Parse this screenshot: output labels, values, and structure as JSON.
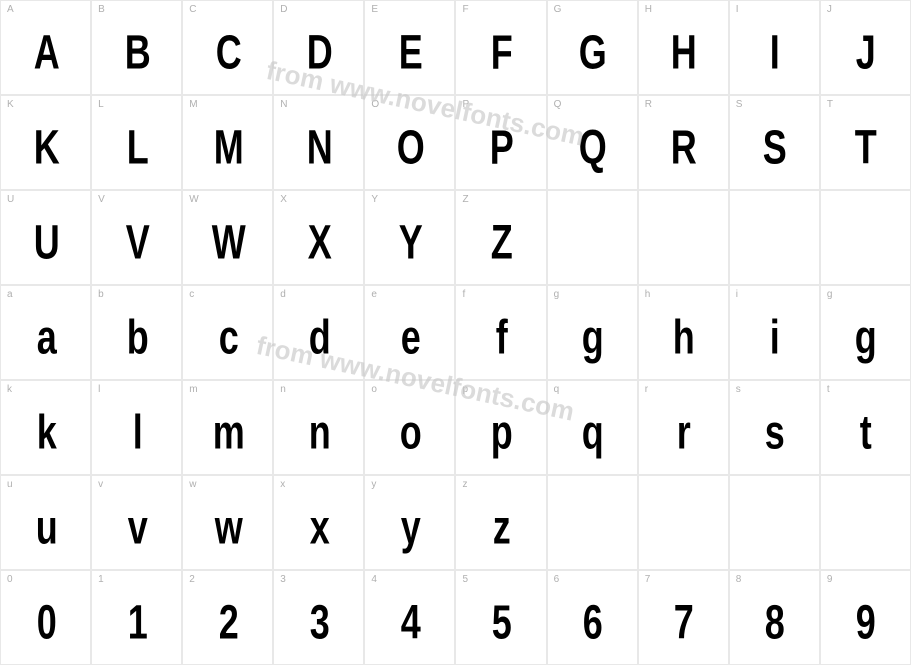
{
  "watermark": "from www.novelfonts.com",
  "grid": {
    "border_color": "#e8e8e8",
    "label_color": "#b0b0b0",
    "glyph_color": "#000000",
    "bg_color": "#ffffff",
    "label_fontsize": 10,
    "glyph_fontsize": 48
  },
  "rows": [
    [
      {
        "label": "A",
        "glyph": "A",
        "cls": "upper"
      },
      {
        "label": "B",
        "glyph": "B",
        "cls": "upper"
      },
      {
        "label": "C",
        "glyph": "C",
        "cls": "upper"
      },
      {
        "label": "D",
        "glyph": "D",
        "cls": "upper"
      },
      {
        "label": "E",
        "glyph": "E",
        "cls": "upper"
      },
      {
        "label": "F",
        "glyph": "F",
        "cls": "upper"
      },
      {
        "label": "G",
        "glyph": "G",
        "cls": "upper"
      },
      {
        "label": "H",
        "glyph": "H",
        "cls": "upper"
      },
      {
        "label": "I",
        "glyph": "I",
        "cls": "upper"
      },
      {
        "label": "J",
        "glyph": "J",
        "cls": "upper"
      }
    ],
    [
      {
        "label": "K",
        "glyph": "K",
        "cls": "upper"
      },
      {
        "label": "L",
        "glyph": "L",
        "cls": "upper"
      },
      {
        "label": "M",
        "glyph": "M",
        "cls": "upper"
      },
      {
        "label": "N",
        "glyph": "N",
        "cls": "upper"
      },
      {
        "label": "O",
        "glyph": "O",
        "cls": "upper"
      },
      {
        "label": "P",
        "glyph": "P",
        "cls": "upper"
      },
      {
        "label": "Q",
        "glyph": "Q",
        "cls": "upper"
      },
      {
        "label": "R",
        "glyph": "R",
        "cls": "upper"
      },
      {
        "label": "S",
        "glyph": "S",
        "cls": "upper"
      },
      {
        "label": "T",
        "glyph": "T",
        "cls": "upper"
      }
    ],
    [
      {
        "label": "U",
        "glyph": "U",
        "cls": "upper"
      },
      {
        "label": "V",
        "glyph": "V",
        "cls": "upper"
      },
      {
        "label": "W",
        "glyph": "W",
        "cls": "upper"
      },
      {
        "label": "X",
        "glyph": "X",
        "cls": "upper"
      },
      {
        "label": "Y",
        "glyph": "Y",
        "cls": "upper"
      },
      {
        "label": "Z",
        "glyph": "Z",
        "cls": "upper"
      },
      {
        "label": "",
        "glyph": "",
        "cls": "empty"
      },
      {
        "label": "",
        "glyph": "",
        "cls": "empty"
      },
      {
        "label": "",
        "glyph": "",
        "cls": "empty"
      },
      {
        "label": "",
        "glyph": "",
        "cls": "empty"
      }
    ],
    [
      {
        "label": "a",
        "glyph": "a",
        "cls": "lower"
      },
      {
        "label": "b",
        "glyph": "b",
        "cls": "lower"
      },
      {
        "label": "c",
        "glyph": "c",
        "cls": "lower"
      },
      {
        "label": "d",
        "glyph": "d",
        "cls": "lower"
      },
      {
        "label": "e",
        "glyph": "e",
        "cls": "lower"
      },
      {
        "label": "f",
        "glyph": "f",
        "cls": "lower"
      },
      {
        "label": "g",
        "glyph": "g",
        "cls": "lower"
      },
      {
        "label": "h",
        "glyph": "h",
        "cls": "lower"
      },
      {
        "label": "i",
        "glyph": "i",
        "cls": "lower"
      },
      {
        "label": "g",
        "glyph": "g",
        "cls": "lower"
      }
    ],
    [
      {
        "label": "k",
        "glyph": "k",
        "cls": "lower"
      },
      {
        "label": "l",
        "glyph": "l",
        "cls": "lower"
      },
      {
        "label": "m",
        "glyph": "m",
        "cls": "lower"
      },
      {
        "label": "n",
        "glyph": "n",
        "cls": "lower"
      },
      {
        "label": "o",
        "glyph": "o",
        "cls": "lower"
      },
      {
        "label": "p",
        "glyph": "p",
        "cls": "lower"
      },
      {
        "label": "q",
        "glyph": "q",
        "cls": "lower"
      },
      {
        "label": "r",
        "glyph": "r",
        "cls": "lower"
      },
      {
        "label": "s",
        "glyph": "s",
        "cls": "lower"
      },
      {
        "label": "t",
        "glyph": "t",
        "cls": "lower"
      }
    ],
    [
      {
        "label": "u",
        "glyph": "u",
        "cls": "lower"
      },
      {
        "label": "v",
        "glyph": "v",
        "cls": "lower"
      },
      {
        "label": "w",
        "glyph": "w",
        "cls": "lower"
      },
      {
        "label": "x",
        "glyph": "x",
        "cls": "lower"
      },
      {
        "label": "y",
        "glyph": "y",
        "cls": "lower"
      },
      {
        "label": "z",
        "glyph": "z",
        "cls": "lower"
      },
      {
        "label": "",
        "glyph": "",
        "cls": "empty"
      },
      {
        "label": "",
        "glyph": "",
        "cls": "empty"
      },
      {
        "label": "",
        "glyph": "",
        "cls": "empty"
      },
      {
        "label": "",
        "glyph": "",
        "cls": "empty"
      }
    ],
    [
      {
        "label": "0",
        "glyph": "0",
        "cls": "digit"
      },
      {
        "label": "1",
        "glyph": "1",
        "cls": "digit"
      },
      {
        "label": "2",
        "glyph": "2",
        "cls": "digit"
      },
      {
        "label": "3",
        "glyph": "3",
        "cls": "digit"
      },
      {
        "label": "4",
        "glyph": "4",
        "cls": "digit"
      },
      {
        "label": "5",
        "glyph": "5",
        "cls": "digit"
      },
      {
        "label": "6",
        "glyph": "6",
        "cls": "digit"
      },
      {
        "label": "7",
        "glyph": "7",
        "cls": "digit"
      },
      {
        "label": "8",
        "glyph": "8",
        "cls": "digit"
      },
      {
        "label": "9",
        "glyph": "9",
        "cls": "digit"
      }
    ]
  ]
}
